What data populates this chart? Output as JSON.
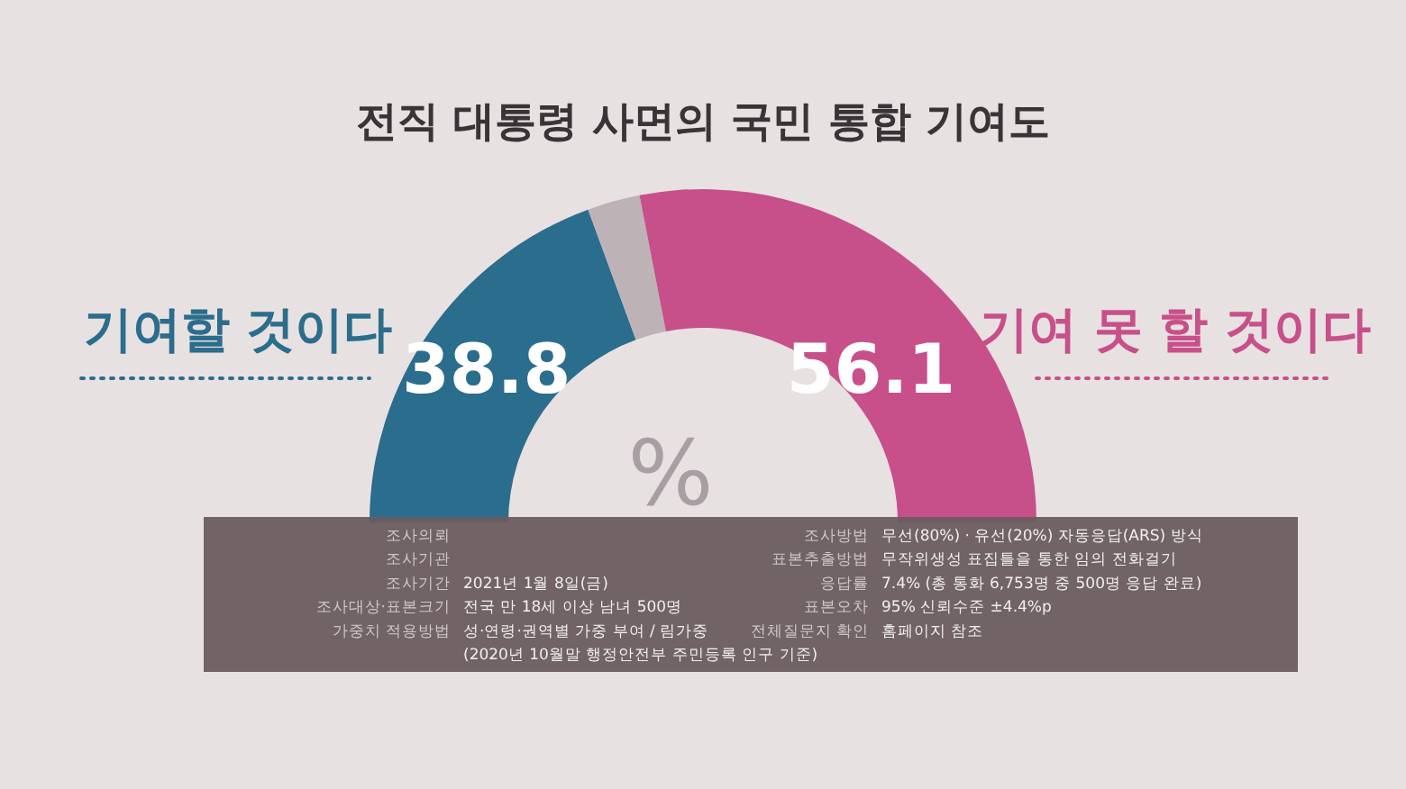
{
  "chart_data": {
    "type": "donut",
    "title": "전직 대통령 사면의 국민 통합 기여도",
    "categories": [
      "기여할 것이다",
      null,
      "기여 못 할 것이다"
    ],
    "values": [
      38.8,
      5.1,
      56.1
    ],
    "colors": [
      "#2b6d8c",
      "#bdb3b7",
      "#c7508a"
    ],
    "value_labels": [
      "38.8",
      null,
      "56.1"
    ],
    "annotations": [
      "조사의뢰",
      "조사기관",
      "조사기간",
      "2021년 1월 8일(금)",
      "조사대상·표본크기",
      "전국 만 18세 이상 남녀 500명",
      "가중치 적용방법",
      "성·연령·권역별 가중 부여 / 림가중",
      "(2020년 10월말 행정안전부 주민등록 인구 기준)",
      "조사방법",
      "무선(80%) · 유선(20%) 자동응답(ARS) 방식",
      "표본추출방법",
      "무작위생성 표집틀을 통한 임의 전화걸기",
      "응답률",
      "7.4% (총 통화 6,753명 중 500명 응답 완료)",
      "표본오차",
      "95% 신뢰수준 ±4.4%p",
      "전체질문지 확인",
      "홈페이지 참조",
      "%"
    ]
  }
}
